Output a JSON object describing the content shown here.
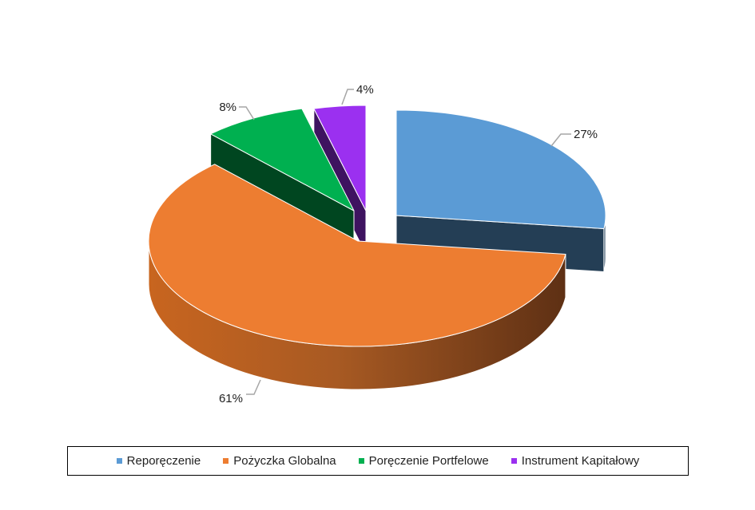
{
  "chart_data": {
    "type": "pie",
    "style": "3d-exploded",
    "title": "",
    "categories": [
      "Reporęczenie",
      "Pożyczka Globalna",
      "Poręczenie Portfelowe",
      "Instrument Kapitałowy"
    ],
    "values": [
      27,
      61,
      8,
      4
    ],
    "labels": [
      "27%",
      "61%",
      "8%",
      "4%"
    ],
    "colors": [
      "#5B9BD5",
      "#ED7D31",
      "#00B050",
      "#9B30F0"
    ],
    "legend_position": "bottom"
  }
}
